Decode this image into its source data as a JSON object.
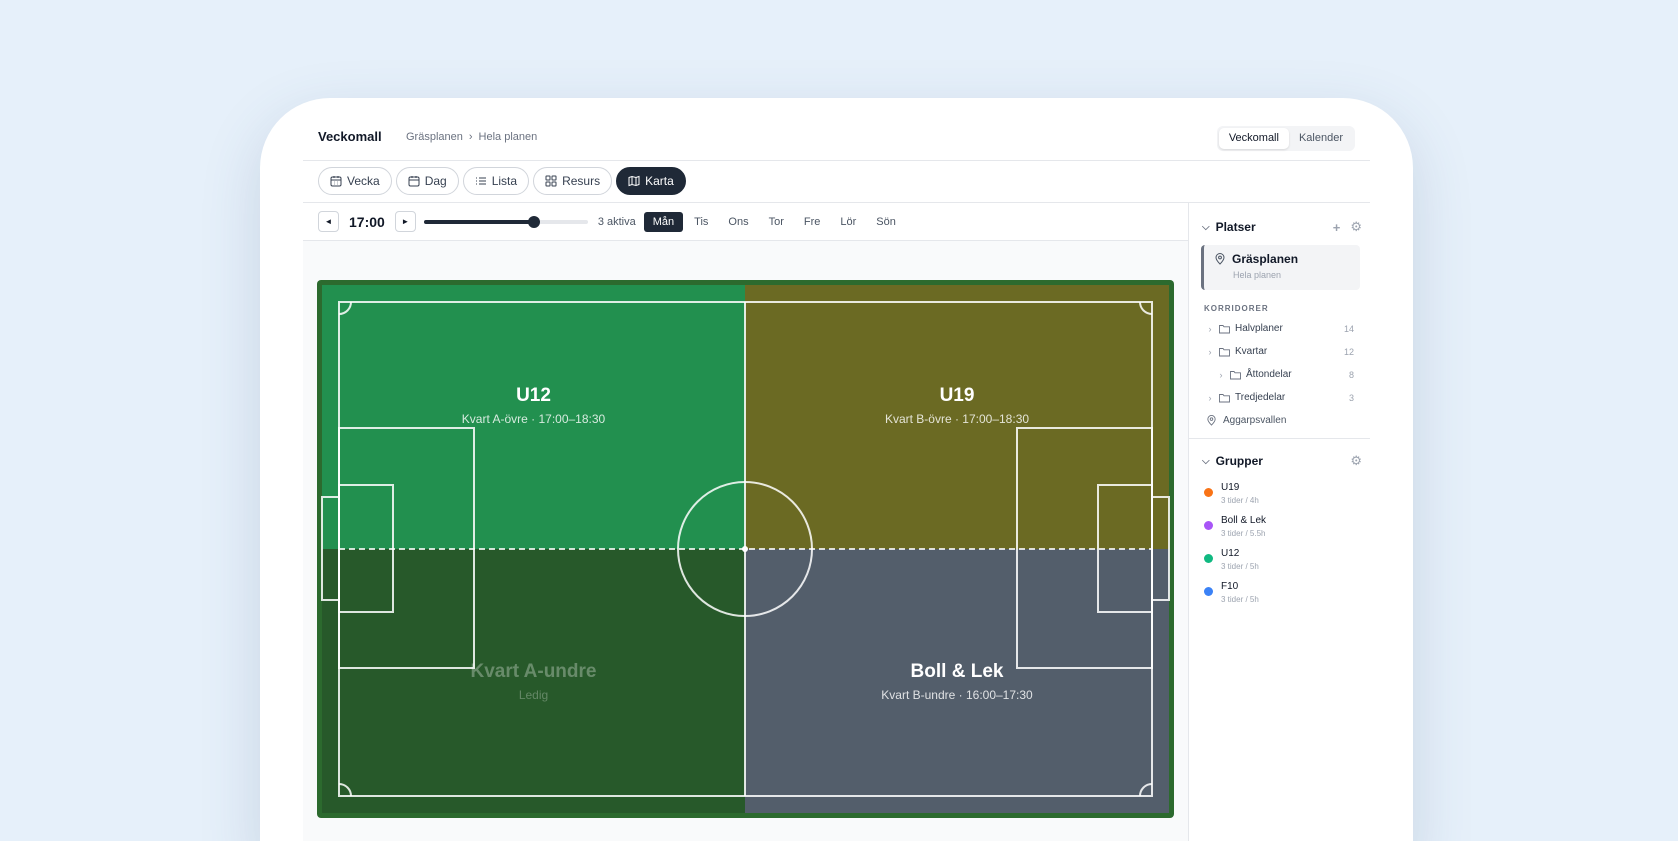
{
  "header": {
    "title": "Veckomall",
    "breadcrumb": [
      "Gräsplanen",
      "Hela planen"
    ],
    "segment": [
      {
        "label": "Veckomall",
        "active": true
      },
      {
        "label": "Kalender",
        "active": false
      }
    ]
  },
  "views": [
    {
      "label": "Vecka",
      "icon": "calendar-grid-icon",
      "active": false
    },
    {
      "label": "Dag",
      "icon": "calendar-icon",
      "active": false
    },
    {
      "label": "Lista",
      "icon": "list-icon",
      "active": false
    },
    {
      "label": "Resurs",
      "icon": "grid-icon",
      "active": false
    },
    {
      "label": "Karta",
      "icon": "map-icon",
      "active": true
    }
  ],
  "toolbar": {
    "prev_glyph": "◄",
    "next_glyph": "►",
    "time": "17:00",
    "slider_fraction": 0.67,
    "active_count": "3 aktiva",
    "days": [
      {
        "label": "Mån",
        "active": true
      },
      {
        "label": "Tis",
        "active": false
      },
      {
        "label": "Ons",
        "active": false
      },
      {
        "label": "Tor",
        "active": false
      },
      {
        "label": "Fre",
        "active": false
      },
      {
        "label": "Lör",
        "active": false
      },
      {
        "label": "Sön",
        "active": false
      }
    ]
  },
  "pitch": {
    "zones": [
      {
        "id": "tl",
        "name": "U12",
        "sub": "Kvart A-övre · 17:00–18:30",
        "color": "#22904f",
        "free": false
      },
      {
        "id": "tr",
        "name": "U19",
        "sub": "Kvart B-övre · 17:00–18:30",
        "color": "#6b6a23",
        "free": false
      },
      {
        "id": "bl",
        "name": "Kvart A-undre",
        "sub": "Ledig",
        "color": "#27592a",
        "free": true
      },
      {
        "id": "br",
        "name": "Boll & Lek",
        "sub": "Kvart B-undre · 16:00–17:30",
        "color": "#535e6b",
        "free": false
      }
    ]
  },
  "sidebar": {
    "places_title": "Platser",
    "selected_place": {
      "name": "Gräsplanen",
      "sub": "Hela planen"
    },
    "corridors_caption": "KORRIDORER",
    "tree": [
      {
        "label": "Halvplaner",
        "count": "14",
        "indent": 0
      },
      {
        "label": "Kvartar",
        "count": "12",
        "indent": 0
      },
      {
        "label": "Åttondelar",
        "count": "8",
        "indent": 1
      },
      {
        "label": "Tredjedelar",
        "count": "3",
        "indent": 0
      }
    ],
    "other_location": "Aggarpsvallen",
    "groups_title": "Grupper",
    "groups": [
      {
        "name": "U19",
        "sub": "3 tider / 4h",
        "color": "#f97316"
      },
      {
        "name": "Boll & Lek",
        "sub": "3 tider / 5.5h",
        "color": "#a855f7"
      },
      {
        "name": "U12",
        "sub": "3 tider / 5h",
        "color": "#10b981"
      },
      {
        "name": "F10",
        "sub": "3 tider / 5h",
        "color": "#3b82f6"
      }
    ]
  }
}
